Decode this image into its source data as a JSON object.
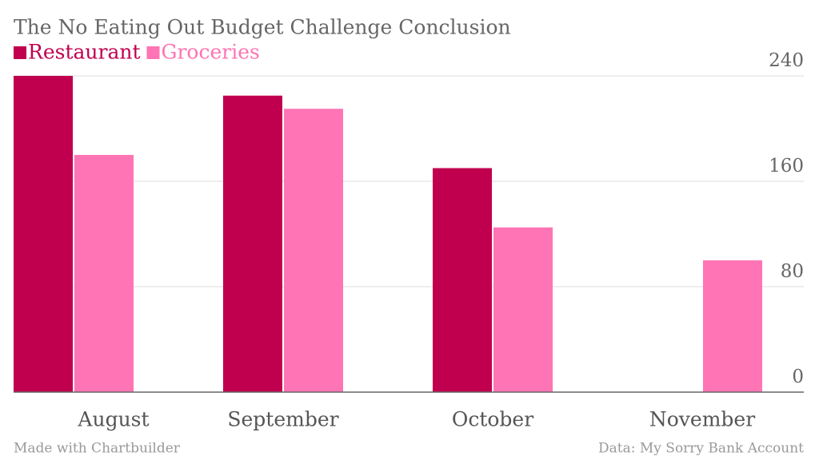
{
  "chart_data": {
    "type": "bar",
    "title": "The No Eating Out Budget Challenge Conclusion",
    "categories": [
      "August",
      "September",
      "October",
      "November"
    ],
    "series": [
      {
        "name": "Restaurant",
        "color": "#c0004f",
        "values": [
          240,
          225,
          170,
          0
        ]
      },
      {
        "name": "Groceries",
        "color": "#ff74b4",
        "values": [
          180,
          215,
          125,
          100
        ]
      }
    ],
    "ylim": [
      0,
      240
    ],
    "yticks": [
      0,
      80,
      160,
      240
    ],
    "grid": true,
    "credit": "Made with Chartbuilder",
    "source": "Data: My Sorry Bank Account"
  }
}
